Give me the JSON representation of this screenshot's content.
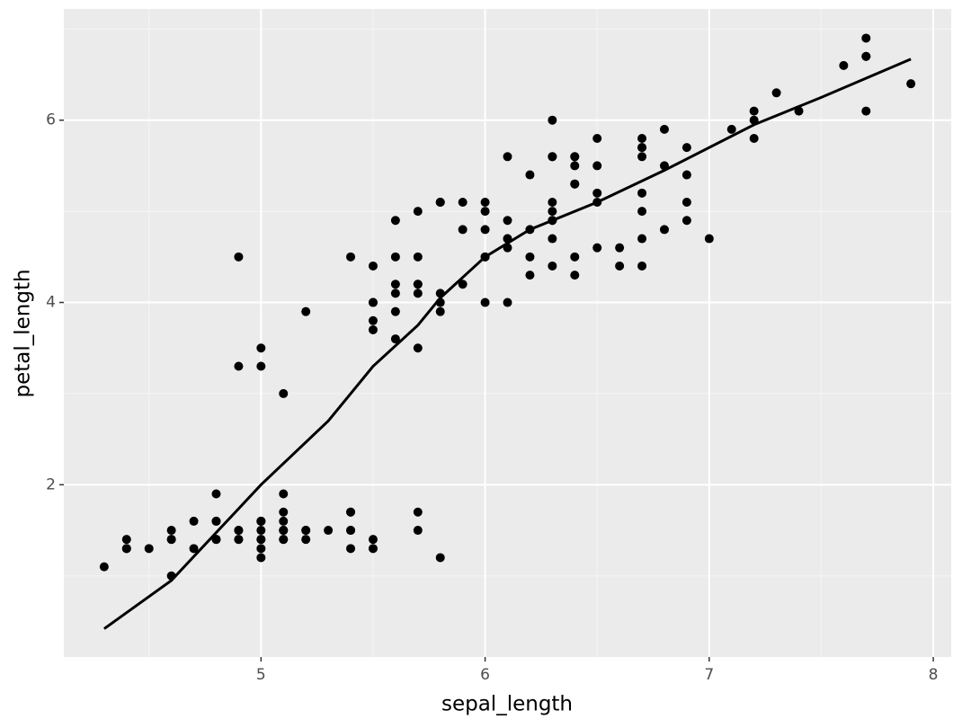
{
  "chart_data": {
    "type": "scatter",
    "x_label": "sepal_length",
    "y_label": "petal_length",
    "x": [
      5.1,
      4.9,
      4.7,
      4.6,
      5.0,
      5.4,
      4.6,
      5.0,
      4.4,
      4.9,
      5.4,
      4.8,
      4.8,
      4.3,
      5.8,
      5.7,
      5.4,
      5.1,
      5.7,
      5.1,
      5.4,
      5.1,
      4.6,
      5.1,
      4.8,
      5.0,
      5.0,
      5.2,
      5.2,
      4.7,
      4.8,
      5.4,
      5.2,
      5.5,
      4.9,
      5.0,
      5.5,
      4.9,
      4.4,
      5.1,
      5.0,
      4.5,
      4.4,
      5.0,
      5.1,
      4.8,
      5.1,
      4.6,
      5.3,
      5.0,
      7.0,
      6.4,
      6.9,
      5.5,
      6.5,
      5.7,
      6.3,
      4.9,
      6.6,
      5.2,
      5.0,
      5.9,
      6.0,
      6.1,
      5.6,
      6.7,
      5.6,
      5.8,
      6.2,
      5.6,
      5.9,
      6.1,
      6.3,
      6.1,
      6.4,
      6.6,
      6.8,
      6.7,
      6.0,
      5.7,
      5.5,
      5.5,
      5.8,
      6.0,
      5.4,
      6.0,
      6.7,
      6.3,
      5.6,
      5.5,
      5.5,
      6.1,
      5.8,
      5.0,
      5.6,
      5.7,
      5.7,
      6.2,
      5.1,
      5.7,
      6.3,
      5.8,
      7.1,
      6.3,
      6.5,
      7.6,
      4.9,
      7.3,
      6.7,
      7.2,
      6.5,
      6.4,
      6.8,
      5.7,
      5.8,
      6.4,
      6.5,
      7.7,
      7.7,
      6.0,
      6.9,
      5.6,
      7.7,
      6.3,
      6.7,
      7.2,
      6.2,
      6.1,
      6.4,
      7.2,
      7.4,
      7.9,
      6.4,
      6.3,
      6.1,
      7.7,
      6.3,
      6.4,
      6.0,
      6.9,
      6.7,
      6.9,
      5.8,
      6.8,
      6.7,
      6.7,
      6.3,
      6.5,
      6.2,
      5.9
    ],
    "values": [
      1.4,
      1.4,
      1.3,
      1.5,
      1.4,
      1.7,
      1.4,
      1.5,
      1.4,
      1.5,
      1.5,
      1.6,
      1.4,
      1.1,
      1.2,
      1.5,
      1.3,
      1.4,
      1.7,
      1.5,
      1.7,
      1.5,
      1.0,
      1.7,
      1.9,
      1.6,
      1.6,
      1.5,
      1.4,
      1.6,
      1.6,
      1.5,
      1.5,
      1.4,
      1.5,
      1.2,
      1.3,
      1.4,
      1.3,
      1.5,
      1.3,
      1.3,
      1.3,
      1.6,
      1.9,
      1.4,
      1.6,
      1.4,
      1.5,
      1.4,
      4.7,
      4.5,
      4.9,
      4.0,
      4.6,
      4.5,
      4.7,
      3.3,
      4.6,
      3.9,
      3.5,
      4.2,
      4.0,
      4.7,
      3.6,
      4.4,
      4.5,
      4.1,
      4.5,
      3.9,
      4.8,
      4.0,
      4.9,
      4.7,
      4.3,
      4.4,
      4.8,
      5.0,
      4.5,
      3.5,
      3.8,
      3.7,
      3.9,
      5.1,
      4.5,
      4.5,
      4.7,
      4.4,
      4.1,
      4.0,
      4.4,
      4.6,
      4.0,
      3.3,
      4.2,
      4.2,
      4.2,
      4.3,
      3.0,
      4.1,
      6.0,
      5.1,
      5.9,
      5.6,
      5.8,
      6.6,
      4.5,
      6.3,
      5.8,
      6.1,
      5.1,
      5.3,
      5.5,
      5.0,
      5.1,
      5.3,
      5.5,
      6.7,
      6.9,
      5.0,
      5.7,
      4.9,
      6.7,
      4.9,
      5.7,
      6.0,
      4.8,
      4.9,
      5.6,
      5.8,
      6.1,
      6.4,
      5.6,
      5.1,
      5.6,
      6.1,
      5.6,
      5.5,
      4.8,
      5.4,
      5.6,
      5.1,
      5.1,
      5.9,
      5.7,
      5.2,
      5.0,
      5.2,
      5.4,
      5.1
    ],
    "color": "#000000",
    "line": {
      "x": [
        4.3,
        4.6,
        5.0,
        5.3,
        5.5,
        5.7,
        5.8,
        6.0,
        6.2,
        6.5,
        6.8,
        7.2,
        7.5,
        7.9
      ],
      "values": [
        0.42,
        0.95,
        2.0,
        2.7,
        3.3,
        3.75,
        4.05,
        4.5,
        4.8,
        5.1,
        5.45,
        5.95,
        6.25,
        6.67
      ],
      "color": "#000000"
    },
    "xlim": [
      4.12,
      8.08
    ],
    "ylim": [
      0.11,
      7.22
    ],
    "xticks": [
      5,
      6,
      7,
      8
    ],
    "yticks": [
      2,
      4,
      6
    ],
    "grid": true
  }
}
